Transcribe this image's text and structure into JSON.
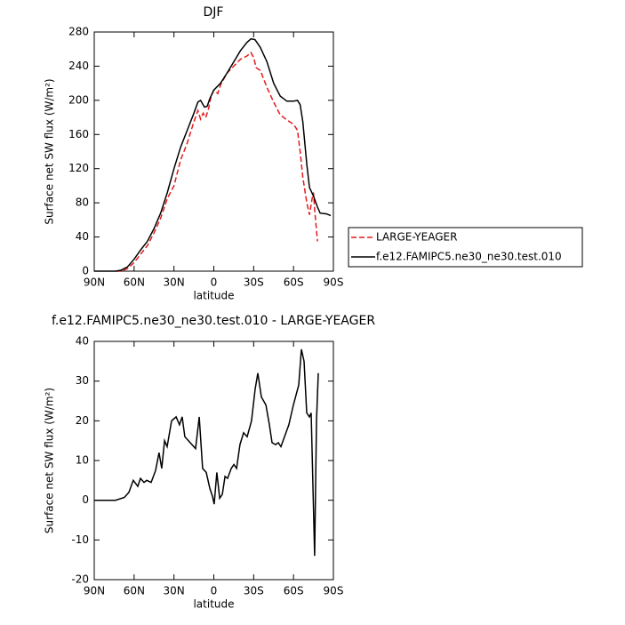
{
  "chart_data": [
    {
      "type": "line",
      "title": "DJF",
      "xlabel": "latitude",
      "ylabel": "Surface net SW flux (W/m²)",
      "xlim": [
        90,
        -90
      ],
      "xticks": [
        {
          "value": 90,
          "label": "90N"
        },
        {
          "value": 60,
          "label": "60N"
        },
        {
          "value": 30,
          "label": "30N"
        },
        0,
        {
          "value": -30,
          "label": "30S"
        },
        {
          "value": -60,
          "label": "60S"
        },
        {
          "value": -90,
          "label": "90S"
        }
      ],
      "ylim": [
        0,
        280
      ],
      "yticks": [
        0,
        40,
        80,
        120,
        160,
        200,
        240,
        280
      ],
      "legend": "right",
      "series": [
        {
          "name": "LARGE-YEAGER",
          "color": "#e41a1c",
          "line_style": "dashed",
          "x": [
            74,
            70,
            65,
            60,
            55,
            50,
            45,
            40,
            35,
            30,
            25,
            20,
            17,
            15,
            12,
            10,
            8,
            6,
            4,
            2,
            0,
            -3,
            -5,
            -10,
            -15,
            -20,
            -25,
            -28,
            -30,
            -32,
            -35,
            -40,
            -45,
            -50,
            -55,
            -60,
            -63,
            -65,
            -67,
            -70,
            -72,
            -74,
            -75,
            -76,
            -78
          ],
          "values": [
            0,
            0,
            3,
            10,
            20,
            30,
            45,
            62,
            85,
            100,
            130,
            150,
            165,
            175,
            188,
            178,
            185,
            180,
            190,
            205,
            212,
            208,
            218,
            232,
            240,
            248,
            252,
            256,
            250,
            238,
            235,
            215,
            198,
            183,
            177,
            172,
            165,
            140,
            110,
            80,
            66,
            85,
            92,
            70,
            35
          ]
        },
        {
          "name": "f.e12.FAMIPC5.ne30_ne30.test.010",
          "color": "#000000",
          "line_style": "solid",
          "x": [
            90,
            80,
            74,
            70,
            65,
            60,
            55,
            50,
            45,
            40,
            35,
            30,
            25,
            20,
            15,
            12,
            10,
            7,
            5,
            3,
            0,
            -5,
            -10,
            -15,
            -20,
            -25,
            -28,
            -31,
            -35,
            -40,
            -45,
            -50,
            -55,
            -60,
            -63,
            -65,
            -67,
            -70,
            -72,
            -75,
            -78,
            -80,
            -85,
            -88
          ],
          "values": [
            0,
            0,
            0,
            1,
            5,
            14,
            25,
            35,
            50,
            68,
            92,
            120,
            145,
            165,
            185,
            198,
            200,
            192,
            193,
            202,
            212,
            220,
            232,
            245,
            258,
            268,
            272,
            271,
            262,
            245,
            220,
            205,
            199,
            199,
            200,
            195,
            175,
            125,
            98,
            88,
            75,
            68,
            67,
            65
          ]
        }
      ]
    },
    {
      "type": "line",
      "title": "f.e12.FAMIPC5.ne30_ne30.test.010 - LARGE-YEAGER",
      "xlabel": "latitude",
      "ylabel": "Surface net SW flux (W/m²)",
      "xlim": [
        90,
        -90
      ],
      "xticks": [
        {
          "value": 90,
          "label": "90N"
        },
        {
          "value": 60,
          "label": "60N"
        },
        {
          "value": 30,
          "label": "30N"
        },
        0,
        {
          "value": -30,
          "label": "30S"
        },
        {
          "value": -60,
          "label": "60S"
        },
        {
          "value": -90,
          "label": "90S"
        }
      ],
      "ylim": [
        -20,
        40
      ],
      "yticks": [
        -20,
        -10,
        0,
        10,
        20,
        30,
        40
      ],
      "color": "#000000",
      "x": [
        90,
        74,
        67.3,
        63.9,
        60.6,
        57.2,
        55.2,
        52.5,
        50.5,
        47.2,
        43.8,
        41.2,
        39.2,
        37.1,
        35.1,
        31.8,
        28.4,
        25.8,
        23.8,
        21.8,
        19.1,
        13.7,
        11.0,
        8.4,
        5.7,
        3.0,
        1.0,
        -0.3,
        -2.3,
        -4.4,
        -6.4,
        -8.4,
        -10.4,
        -13.1,
        -15.1,
        -17.1,
        -19.7,
        -22.4,
        -25.1,
        -28.4,
        -31.1,
        -33.1,
        -35.8,
        -39.2,
        -41.8,
        -43.8,
        -46.5,
        -48.5,
        -50.5,
        -53.2,
        -56.5,
        -59.9,
        -63.9,
        -65.9,
        -67.9,
        -69.9,
        -71.9,
        -73.3,
        -75.9,
        -77.3,
        -78.6
      ],
      "values": [
        0,
        0,
        0.7,
        2,
        5,
        3.5,
        5.5,
        4.5,
        5,
        4.5,
        7.5,
        12,
        8,
        15,
        13.5,
        20,
        21,
        19,
        21,
        16,
        15,
        13,
        21,
        8,
        7,
        3,
        1,
        -1,
        7,
        0.5,
        1.5,
        6,
        5.5,
        8,
        9,
        8,
        14,
        17,
        16,
        20,
        28,
        32,
        26,
        24,
        19,
        14.5,
        14,
        14.5,
        13.5,
        16,
        19,
        24,
        29,
        38,
        35,
        22,
        21,
        22,
        -14,
        20,
        32
      ]
    }
  ]
}
